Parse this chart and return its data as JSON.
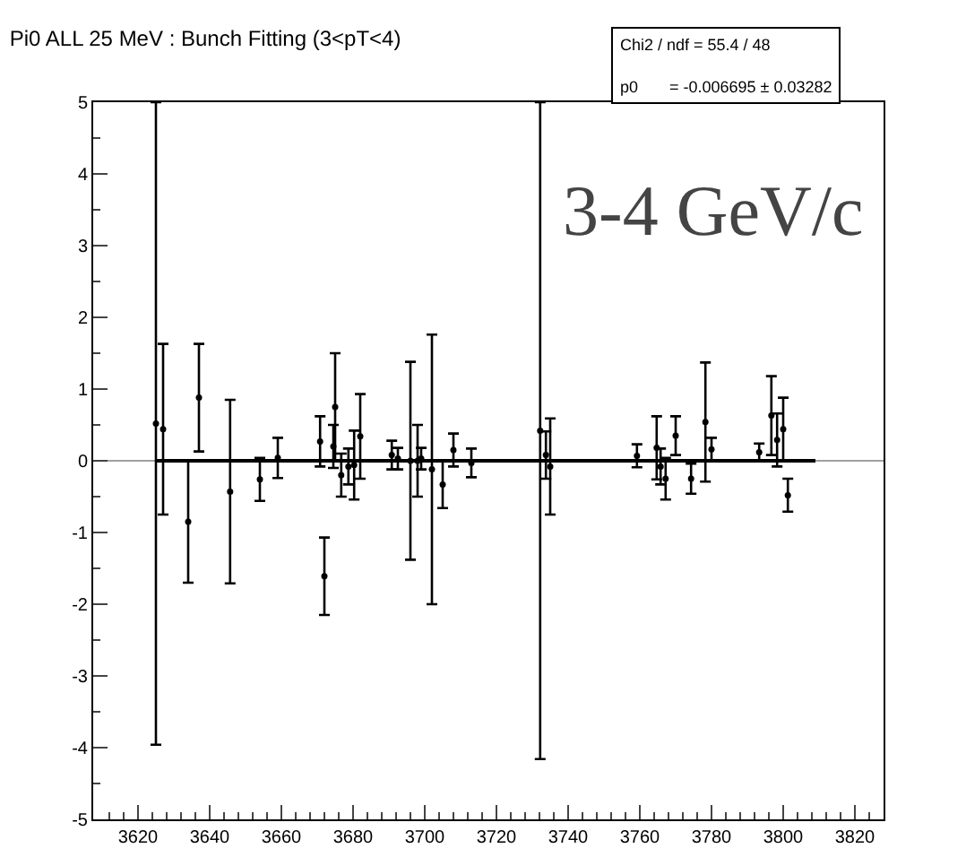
{
  "chart_data": {
    "type": "scatter",
    "title": "Pi0 ALL 25 MeV : Bunch Fitting (3<pT<4)",
    "annotations": [
      "Chi2 / ndf = 55.4 / 48",
      "p0       = -0.006695 ± 0.03282",
      "3-4 GeV/c"
    ],
    "series": [
      {
        "marker": "circle",
        "color": "#000000",
        "x": [
          3625,
          3627,
          3634,
          3637,
          3645.7,
          3654,
          3659,
          3670.8,
          3672,
          3674.5,
          3675,
          3676.7,
          3678.7,
          3680.3,
          3682,
          3690.8,
          3692.5,
          3696,
          3698,
          3699,
          3702,
          3705,
          3708,
          3713,
          3732.2,
          3733.8,
          3735,
          3759.2,
          3764.7,
          3765.8,
          3767.2,
          3770,
          3774.3,
          3778.3,
          3780,
          3793.3,
          3796.7,
          3798.3,
          3800,
          3801.3
        ],
        "values": [
          0.52,
          0.44,
          -0.85,
          0.88,
          -0.43,
          -0.26,
          0.04,
          0.27,
          -1.61,
          0.2,
          0.75,
          -0.2,
          -0.08,
          -0.06,
          0.34,
          0.08,
          0.03,
          0,
          0,
          0.03,
          -0.12,
          -0.33,
          0.15,
          -0.03,
          0.42,
          0.08,
          -0.08,
          0.07,
          0.18,
          -0.08,
          -0.25,
          0.35,
          -0.25,
          0.54,
          0.16,
          0.12,
          0.63,
          0.29,
          0.44,
          -0.48
        ],
        "errors": [
          4.48,
          1.19,
          0.85,
          0.75,
          1.28,
          0.3,
          0.28,
          0.35,
          0.54,
          0.3,
          0.75,
          0.3,
          0.25,
          0.48,
          0.59,
          0.2,
          0.15,
          1.38,
          0.5,
          0.15,
          1.88,
          0.33,
          0.23,
          0.2,
          4.58,
          0.33,
          0.67,
          0.16,
          0.44,
          0.25,
          0.29,
          0.27,
          0.21,
          0.83,
          0.16,
          0.12,
          0.55,
          0.37,
          0.44,
          0.23
        ]
      },
      {
        "type": "line",
        "color": "#000000",
        "x": [
          3625,
          3809
        ],
        "values": [
          0,
          0
        ]
      }
    ],
    "ref_lines": [
      {
        "axis": "y",
        "value": 0,
        "color": "#a0a0a0"
      }
    ],
    "xlim": [
      3607.5,
      3828
    ],
    "xticks": [
      3620,
      3640,
      3660,
      3680,
      3700,
      3720,
      3740,
      3760,
      3780,
      3800,
      3820
    ],
    "ylim": [
      -5,
      5
    ],
    "yticks": [
      -5,
      -4,
      -3,
      -2,
      -1,
      0,
      1,
      2,
      3,
      4,
      5
    ],
    "grid": false
  }
}
